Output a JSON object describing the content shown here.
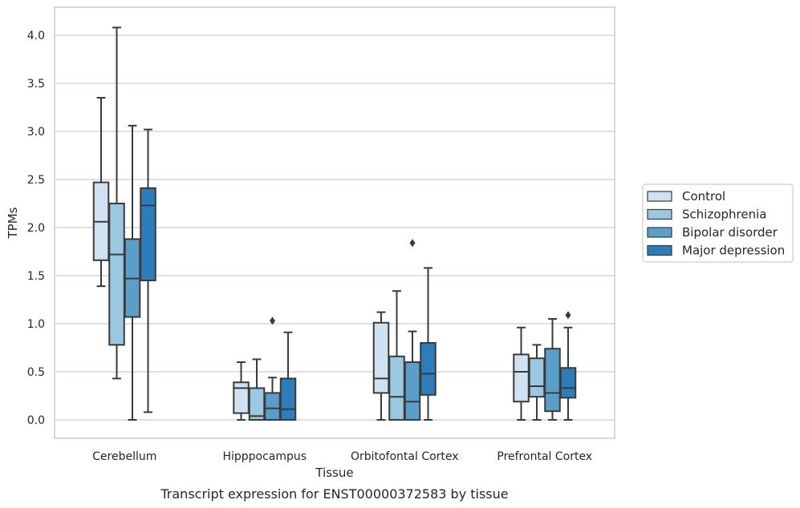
{
  "chart_data": {
    "type": "box",
    "caption": "Transcript expression for ENST00000372583 by tissue",
    "xlabel": "Tissue",
    "ylabel": "TPMs",
    "ylim": [
      -0.2,
      4.3
    ],
    "yticks": [
      0.0,
      0.5,
      1.0,
      1.5,
      2.0,
      2.5,
      3.0,
      3.5,
      4.0
    ],
    "ytick_labels": [
      "0.0",
      "0.5",
      "1.0",
      "1.5",
      "2.0",
      "2.5",
      "3.0",
      "3.5",
      "4.0"
    ],
    "grid": true,
    "legend_position": "right",
    "categories": [
      "Cerebellum",
      "Hipppocampus",
      "Orbitofontal Cortex",
      "Prefrontal Cortex"
    ],
    "series": [
      {
        "name": "Control",
        "color": "#d0e1f2",
        "boxes": [
          {
            "whisker_low": 1.39,
            "q1": 1.66,
            "median": 2.06,
            "q3": 2.47,
            "whisker_high": 3.35,
            "outliers": []
          },
          {
            "whisker_low": 0.0,
            "q1": 0.07,
            "median": 0.33,
            "q3": 0.39,
            "whisker_high": 0.6,
            "outliers": []
          },
          {
            "whisker_low": 0.0,
            "q1": 0.28,
            "median": 0.43,
            "q3": 1.01,
            "whisker_high": 1.12,
            "outliers": []
          },
          {
            "whisker_low": 0.0,
            "q1": 0.19,
            "median": 0.5,
            "q3": 0.68,
            "whisker_high": 0.96,
            "outliers": []
          }
        ]
      },
      {
        "name": "Schizophrenia",
        "color": "#9ac8e0",
        "boxes": [
          {
            "whisker_low": 0.43,
            "q1": 0.78,
            "median": 1.72,
            "q3": 2.25,
            "whisker_high": 4.08,
            "outliers": []
          },
          {
            "whisker_low": 0.0,
            "q1": 0.0,
            "median": 0.04,
            "q3": 0.33,
            "whisker_high": 0.63,
            "outliers": []
          },
          {
            "whisker_low": 0.0,
            "q1": 0.0,
            "median": 0.24,
            "q3": 0.66,
            "whisker_high": 1.34,
            "outliers": []
          },
          {
            "whisker_low": 0.0,
            "q1": 0.24,
            "median": 0.35,
            "q3": 0.64,
            "whisker_high": 0.78,
            "outliers": []
          }
        ]
      },
      {
        "name": "Bipolar disorder",
        "color": "#5b9ec9",
        "boxes": [
          {
            "whisker_low": 0.0,
            "q1": 1.07,
            "median": 1.47,
            "q3": 1.88,
            "whisker_high": 3.06,
            "outliers": []
          },
          {
            "whisker_low": 0.0,
            "q1": 0.0,
            "median": 0.12,
            "q3": 0.28,
            "whisker_high": 0.44,
            "outliers": [
              1.03
            ]
          },
          {
            "whisker_low": 0.0,
            "q1": 0.0,
            "median": 0.19,
            "q3": 0.6,
            "whisker_high": 0.92,
            "outliers": [
              1.84
            ]
          },
          {
            "whisker_low": 0.0,
            "q1": 0.09,
            "median": 0.28,
            "q3": 0.74,
            "whisker_high": 1.05,
            "outliers": []
          }
        ]
      },
      {
        "name": "Major depression",
        "color": "#2d7dbb",
        "boxes": [
          {
            "whisker_low": 0.08,
            "q1": 1.45,
            "median": 2.23,
            "q3": 2.41,
            "whisker_high": 3.02,
            "outliers": []
          },
          {
            "whisker_low": 0.0,
            "q1": 0.0,
            "median": 0.11,
            "q3": 0.43,
            "whisker_high": 0.91,
            "outliers": []
          },
          {
            "whisker_low": 0.0,
            "q1": 0.26,
            "median": 0.48,
            "q3": 0.8,
            "whisker_high": 1.58,
            "outliers": []
          },
          {
            "whisker_low": 0.0,
            "q1": 0.23,
            "median": 0.33,
            "q3": 0.54,
            "whisker_high": 0.96,
            "outliers": [
              1.09
            ]
          }
        ]
      }
    ],
    "style": {
      "grid_color": "#cccccc",
      "frame_color": "#cccccc",
      "line_color": "#3a3a3a",
      "text_color": "#262626"
    }
  }
}
